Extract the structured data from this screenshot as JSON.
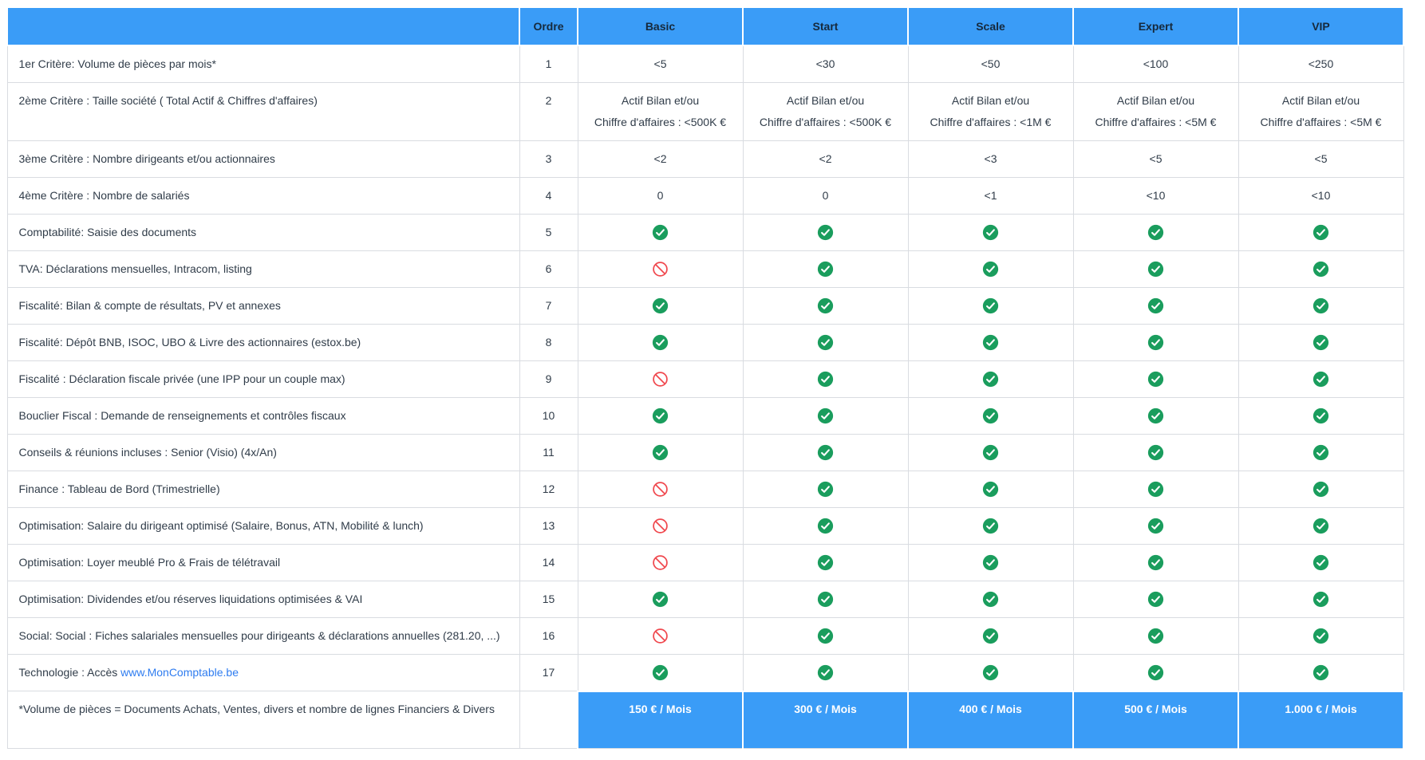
{
  "colors": {
    "header_bg": "#3a9cf7",
    "header_text": "#16293c",
    "body_text": "#303c49",
    "border": "#d9dce1",
    "check_green": "#1a9d5d",
    "deny_red": "#f0484e",
    "link_blue": "#2e7cf0",
    "price_text": "#ffffff"
  },
  "icons": {
    "check": "check-circle-icon",
    "deny": "no-entry-icon"
  },
  "table": {
    "columns": [
      "",
      "Ordre",
      "Basic",
      "Start",
      "Scale",
      "Expert",
      "VIP"
    ],
    "rows": [
      {
        "label": "1er Critère: Volume de pièces par mois*",
        "ordre": "1",
        "type": "text",
        "values": [
          "<5",
          "<30",
          "<50",
          "<100",
          "<250"
        ]
      },
      {
        "label": "2ème Critère : Taille société ( Total Actif & Chiffres d'affaires)",
        "ordre": "2",
        "type": "text2",
        "values": [
          [
            "Actif Bilan et/ou",
            "Chiffre d'affaires : <500K €"
          ],
          [
            "Actif Bilan et/ou",
            "Chiffre d'affaires : <500K €"
          ],
          [
            "Actif Bilan et/ou",
            "Chiffre d'affaires : <1M €"
          ],
          [
            "Actif Bilan et/ou",
            "Chiffre d'affaires : <5M €"
          ],
          [
            "Actif Bilan et/ou",
            "Chiffre d'affaires : <5M €"
          ]
        ]
      },
      {
        "label": "3ème Critère : Nombre dirigeants et/ou actionnaires",
        "ordre": "3",
        "type": "text",
        "values": [
          "<2",
          "<2",
          "<3",
          "<5",
          "<5"
        ]
      },
      {
        "label": "4ème Critère : Nombre de salariés",
        "ordre": "4",
        "type": "text",
        "values": [
          "0",
          "0",
          "<1",
          "<10",
          "<10"
        ]
      },
      {
        "label": "Comptabilité: Saisie des documents",
        "ordre": "5",
        "type": "icon",
        "values": [
          "check",
          "check",
          "check",
          "check",
          "check"
        ]
      },
      {
        "label": "TVA: Déclarations mensuelles, Intracom, listing",
        "ordre": "6",
        "type": "icon",
        "values": [
          "deny",
          "check",
          "check",
          "check",
          "check"
        ]
      },
      {
        "label": "Fiscalité: Bilan & compte de résultats, PV et annexes",
        "ordre": "7",
        "type": "icon",
        "values": [
          "check",
          "check",
          "check",
          "check",
          "check"
        ]
      },
      {
        "label": "Fiscalité: Dépôt BNB, ISOC, UBO & Livre des actionnaires (estox.be)",
        "ordre": "8",
        "type": "icon",
        "values": [
          "check",
          "check",
          "check",
          "check",
          "check"
        ]
      },
      {
        "label": "Fiscalité : Déclaration fiscale privée (une IPP pour un couple max)",
        "ordre": "9",
        "type": "icon",
        "values": [
          "deny",
          "check",
          "check",
          "check",
          "check"
        ]
      },
      {
        "label": "Bouclier Fiscal : Demande de renseignements et contrôles fiscaux",
        "ordre": "10",
        "type": "icon",
        "values": [
          "check",
          "check",
          "check",
          "check",
          "check"
        ]
      },
      {
        "label": "Conseils & réunions incluses : Senior (Visio) (4x/An)",
        "ordre": "11",
        "type": "icon",
        "values": [
          "check",
          "check",
          "check",
          "check",
          "check"
        ]
      },
      {
        "label": "Finance : Tableau de Bord (Trimestrielle)",
        "ordre": "12",
        "type": "icon",
        "values": [
          "deny",
          "check",
          "check",
          "check",
          "check"
        ]
      },
      {
        "label": "Optimisation: Salaire du dirigeant optimisé (Salaire, Bonus, ATN, Mobilité & lunch)",
        "ordre": "13",
        "type": "icon",
        "values": [
          "deny",
          "check",
          "check",
          "check",
          "check"
        ]
      },
      {
        "label": "Optimisation: Loyer meublé Pro & Frais de télétravail",
        "ordre": "14",
        "type": "icon",
        "values": [
          "deny",
          "check",
          "check",
          "check",
          "check"
        ]
      },
      {
        "label": "Optimisation: Dividendes et/ou réserves liquidations optimisées & VAI",
        "ordre": "15",
        "type": "icon",
        "values": [
          "check",
          "check",
          "check",
          "check",
          "check"
        ]
      },
      {
        "label": "Social: Social : Fiches salariales mensuelles pour dirigeants & déclarations annuelles (281.20, ...)",
        "ordre": "16",
        "type": "icon",
        "values": [
          "deny",
          "check",
          "check",
          "check",
          "check"
        ]
      },
      {
        "label": "Technologie : Accès ",
        "link": "www.MonComptable.be",
        "ordre": "17",
        "type": "icon",
        "values": [
          "check",
          "check",
          "check",
          "check",
          "check"
        ]
      }
    ],
    "footer": {
      "label": "*Volume de pièces =  Documents Achats, Ventes, divers et nombre de lignes Financiers & Divers",
      "ordre": "",
      "prices": [
        "150 € / Mois",
        "300 € / Mois",
        "400 € / Mois",
        "500 € / Mois",
        "1.000 € / Mois"
      ]
    }
  }
}
